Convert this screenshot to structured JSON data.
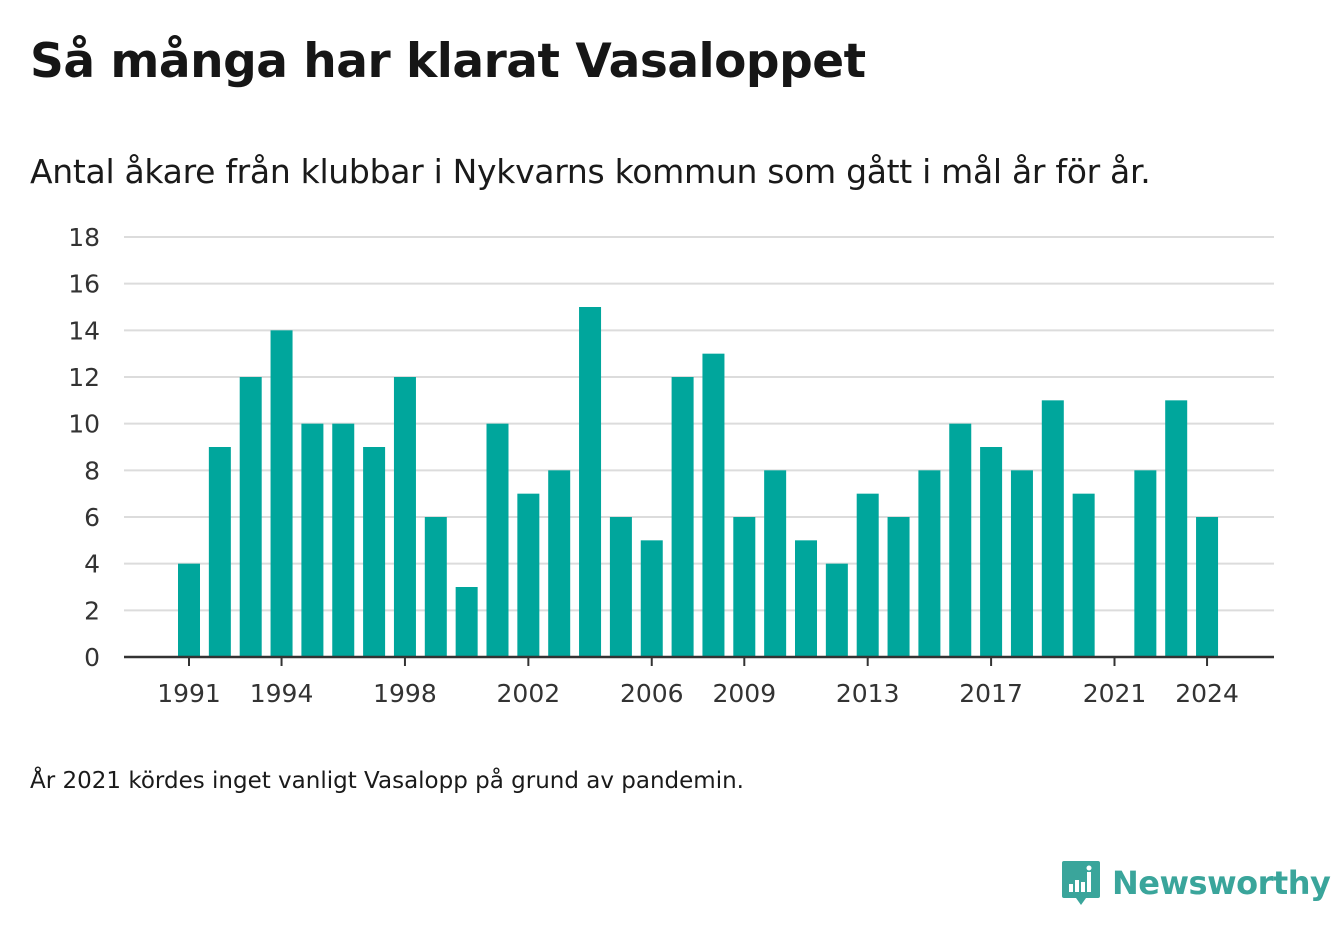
{
  "header": {
    "title": "Så många har klarat Vasaloppet",
    "subtitle": "Antal åkare från klubbar i Nykvarns kommun som gått i mål år för år."
  },
  "footnote": "År 2021 kördes inget vanligt Vasalopp på grund av pandemin.",
  "brand": {
    "name": "Newsworthy",
    "icon": "newsworthy-logo-icon",
    "color": "#3aa59b"
  },
  "chart_data": {
    "type": "bar",
    "title": "Så många har klarat Vasaloppet",
    "subtitle": "Antal åkare från klubbar i Nykvarns kommun som gått i mål år för år.",
    "xlabel": "",
    "ylabel": "",
    "ylim": [
      0,
      18
    ],
    "yticks": [
      0,
      2,
      4,
      6,
      8,
      10,
      12,
      14,
      16,
      18
    ],
    "xticks": [
      1991,
      1994,
      1998,
      2002,
      2006,
      2009,
      2013,
      2017,
      2021,
      2024
    ],
    "grid": true,
    "legend": "none",
    "bar_color": "#00a69c",
    "categories": [
      1991,
      1992,
      1993,
      1994,
      1995,
      1996,
      1997,
      1998,
      1999,
      2000,
      2001,
      2002,
      2003,
      2004,
      2005,
      2006,
      2007,
      2008,
      2009,
      2010,
      2011,
      2012,
      2013,
      2014,
      2015,
      2016,
      2017,
      2018,
      2019,
      2020,
      2021,
      2022,
      2023,
      2024
    ],
    "values": [
      4,
      9,
      12,
      14,
      10,
      10,
      9,
      12,
      6,
      3,
      10,
      7,
      8,
      15,
      6,
      5,
      12,
      13,
      6,
      8,
      5,
      4,
      7,
      6,
      8,
      10,
      9,
      8,
      11,
      7,
      0,
      8,
      11,
      6
    ]
  }
}
